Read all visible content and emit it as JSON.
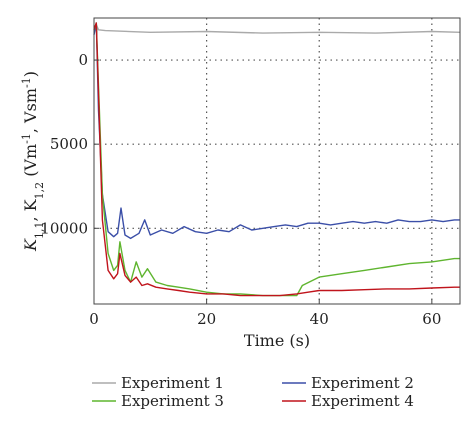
{
  "chart_data": {
    "type": "line",
    "xlabel": "Time (s)",
    "ylabel": "K_{1,1}, K_{1,2} (Vm^{-1}, Vsm^{-1})",
    "xlim": [
      0,
      65
    ],
    "ylim": [
      14500,
      -2500
    ],
    "y_inverted": true,
    "x_ticks": [
      0,
      20,
      40,
      60
    ],
    "y_ticks": [
      0,
      5000,
      10000
    ],
    "y_tick_labels": [
      "0",
      "5000",
      "10000"
    ],
    "x_tick_labels": [
      "0",
      "20",
      "40",
      "60"
    ],
    "grid": "dotted, at ticks",
    "legend_position": "bottom, two columns",
    "series": [
      {
        "name": "Experiment 1",
        "color": "#aaaaaa",
        "x": [
          0,
          0.4,
          0.8,
          2,
          10,
          20,
          30,
          40,
          50,
          60,
          65
        ],
        "y": [
          -1900,
          -2100,
          -1800,
          -1750,
          -1650,
          -1700,
          -1600,
          -1650,
          -1600,
          -1700,
          -1650
        ]
      },
      {
        "name": "Experiment 2",
        "color": "#3b4fa8",
        "x": [
          0,
          0.4,
          0.8,
          1.5,
          2.5,
          3.5,
          4.2,
          4.8,
          5.5,
          6.5,
          8,
          9,
          10,
          12,
          14,
          16,
          18,
          20,
          22,
          24,
          26,
          28,
          30,
          32,
          34,
          36,
          38,
          40,
          42,
          44,
          46,
          48,
          50,
          52,
          54,
          56,
          58,
          60,
          62,
          64,
          65
        ],
        "y": [
          -1500,
          -2200,
          3000,
          8000,
          10200,
          10500,
          10300,
          8800,
          10400,
          10600,
          10300,
          9500,
          10400,
          10100,
          10300,
          9900,
          10200,
          10300,
          10100,
          10200,
          9800,
          10100,
          10000,
          9900,
          9800,
          9900,
          9700,
          9700,
          9800,
          9700,
          9600,
          9700,
          9600,
          9700,
          9500,
          9600,
          9600,
          9500,
          9600,
          9500,
          9500
        ]
      },
      {
        "name": "Experiment 3",
        "color": "#5fb52f",
        "x": [
          0,
          0.4,
          0.8,
          1.5,
          2.5,
          3.5,
          4.2,
          4.6,
          5.5,
          6.5,
          7.5,
          8.5,
          9.5,
          11,
          13,
          15,
          17,
          20,
          23,
          26,
          30,
          33,
          36,
          37,
          40,
          44,
          48,
          52,
          56,
          60,
          64,
          65
        ],
        "y": [
          -1800,
          -2200,
          1500,
          8000,
          11500,
          12500,
          12200,
          10800,
          12500,
          13200,
          12000,
          12900,
          12400,
          13200,
          13400,
          13500,
          13600,
          13800,
          13900,
          13900,
          14000,
          14000,
          14000,
          13400,
          12900,
          12700,
          12500,
          12300,
          12100,
          12000,
          11800,
          11800
        ]
      },
      {
        "name": "Experiment 4",
        "color": "#c0141c",
        "x": [
          0,
          0.4,
          0.8,
          1.5,
          2.5,
          3.5,
          4.2,
          4.6,
          5.5,
          6.5,
          7.5,
          8.5,
          9.5,
          11,
          13,
          15,
          17,
          20,
          23,
          26,
          30,
          33,
          36,
          38,
          40,
          44,
          48,
          52,
          56,
          60,
          64,
          65
        ],
        "y": [
          -1800,
          -2200,
          2000,
          9500,
          12500,
          13000,
          12700,
          11500,
          12800,
          13200,
          12900,
          13400,
          13300,
          13500,
          13600,
          13700,
          13800,
          13900,
          13900,
          14000,
          14000,
          14000,
          13900,
          13800,
          13700,
          13700,
          13650,
          13600,
          13600,
          13550,
          13500,
          13500
        ]
      }
    ]
  }
}
